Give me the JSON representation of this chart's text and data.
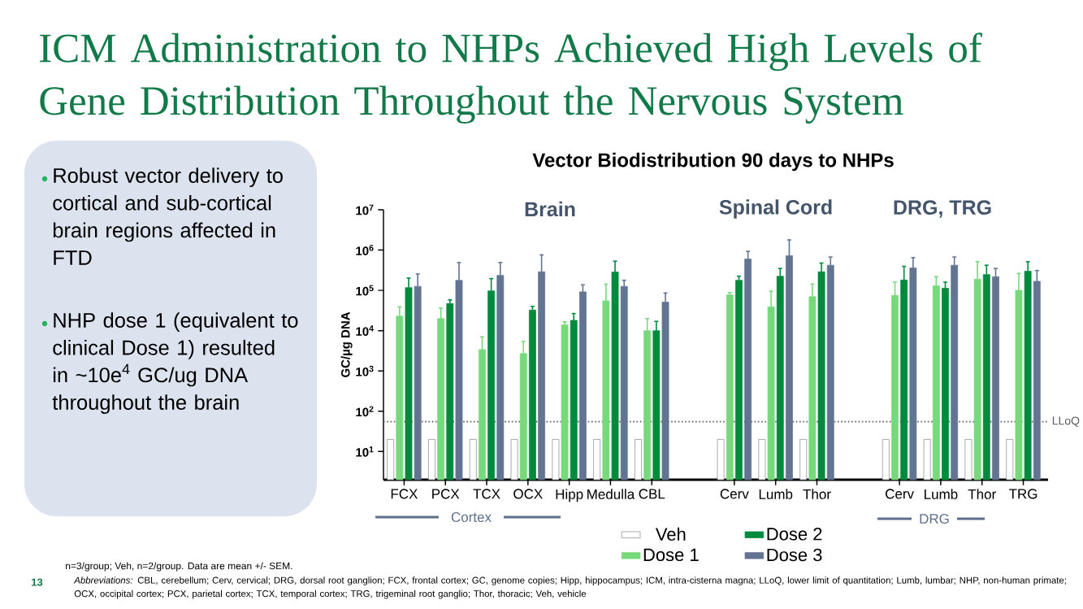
{
  "chart_data": {
    "type": "bar",
    "title": "ICM Administration to NHPs Achieved High Levels of Gene Distribution Throughout the Nervous System",
    "subtitle": "Vector Biodistribution 90 days to NHPs",
    "ylabel": "GC/µg DNA",
    "categories": [
      "FCX",
      "PCX",
      "TCX",
      "OCX",
      "Hipp",
      "Medulla",
      "CBL",
      null,
      "Cerv",
      "Lumb",
      "Thor",
      null,
      "Cerv",
      "Lumb",
      "Thor",
      "TRG"
    ],
    "series": [
      {
        "name": "Veh",
        "color": "#ffffff",
        "values": [
          20,
          20,
          20,
          20,
          20,
          20,
          20,
          null,
          20,
          20,
          20,
          null,
          20,
          20,
          20,
          20
        ]
      },
      {
        "name": "Dose 1",
        "color": "#77d97b",
        "values": [
          23000,
          20000,
          3400,
          2700,
          14000,
          55000,
          10000,
          null,
          77000,
          39000,
          70000,
          null,
          75000,
          130000,
          190000,
          100000
        ],
        "errors": [
          [
            23000,
            39000
          ],
          [
            20000,
            36000
          ],
          [
            3400,
            7000
          ],
          [
            2700,
            5400
          ],
          [
            14000,
            16600
          ],
          [
            55000,
            143000
          ],
          [
            10000,
            20000
          ],
          null,
          [
            77000,
            88000
          ],
          [
            39000,
            95000
          ],
          [
            70000,
            143000
          ],
          null,
          [
            75000,
            160000
          ],
          [
            130000,
            218000
          ],
          [
            190000,
            515000
          ],
          [
            100000,
            263000
          ]
        ]
      },
      {
        "name": "Dose 2",
        "color": "#008a3e",
        "values": [
          117000,
          47000,
          97000,
          32500,
          18000,
          285000,
          10000,
          null,
          178000,
          225000,
          289000,
          null,
          181000,
          113000,
          247000,
          299000
        ],
        "errors": [
          [
            117000,
            202000
          ],
          [
            47000,
            58000
          ],
          [
            97000,
            196000
          ],
          [
            32500,
            40000
          ],
          [
            18000,
            26500
          ],
          [
            285000,
            530000
          ],
          [
            10000,
            17000
          ],
          null,
          [
            178000,
            225000
          ],
          [
            225000,
            350000
          ],
          [
            289000,
            476000
          ],
          null,
          [
            181000,
            395000
          ],
          [
            113000,
            160000
          ],
          [
            247000,
            421000
          ],
          [
            299000,
            515000
          ]
        ]
      },
      {
        "name": "Dose 3",
        "color": "#627491",
        "values": [
          126000,
          178000,
          236000,
          289000,
          92000,
          126000,
          51000,
          null,
          603000,
          726000,
          421000,
          null,
          360000,
          421000,
          218000,
          168000
        ],
        "errors": [
          [
            126000,
            255000
          ],
          [
            178000,
            490000
          ],
          [
            236000,
            490000
          ],
          [
            289000,
            760000
          ],
          [
            92000,
            137000
          ],
          [
            126000,
            178000
          ],
          [
            51000,
            86000
          ],
          null,
          [
            603000,
            930000
          ],
          [
            726000,
            1790000
          ],
          [
            421000,
            671000
          ],
          null,
          [
            360000,
            650000
          ],
          [
            421000,
            671000
          ],
          [
            218000,
            350000
          ],
          [
            168000,
            312000
          ]
        ]
      }
    ],
    "log": "y",
    "ylim": [
      2,
      10000000
    ],
    "yticks": [
      {
        "value": 10,
        "label": "10$^{1}$"
      },
      {
        "value": 100,
        "label": "10$^{2}$"
      },
      {
        "value": 1000,
        "label": "10$^{3}$"
      },
      {
        "value": 10000,
        "label": "10$^{4}$"
      },
      {
        "value": 100000,
        "label": "10$^{5}$"
      },
      {
        "value": 1000000,
        "label": "10$^{6}$"
      },
      {
        "value": 10000000,
        "label": "10$^{7}$"
      }
    ],
    "ref_lines": [
      {
        "axis": "y",
        "value": 55,
        "label": "LLoQ",
        "line_style": "dotted"
      }
    ],
    "legend": "bottom",
    "annotations": [
      "Brain",
      "Spinal Cord",
      "DRG, TRG",
      "Cortex",
      "DRG",
      "Robust vector delivery to cortical and sub-cortical brain regions affected in FTD",
      "NHP dose 1 (equivalent to clinical Dose 1) resulted in ~10e$^{4}$ GC/ug DNA throughout the brain",
      "n=3/group; Veh, n=2/group. Data are mean +/- SEM.",
      "*Abbreviations:* CBL, cerebellum; Cerv, cervical; DRG, dorsal root ganglion; FCX, frontal cortex; GC, genome copies; Hipp, hippocampus; ICM, intra-cisterna magna;  LLoQ, lower limit of quantitation; Lumb, lumbar; NHP, non-human primate; OCX, occipital cortex; PCX, parietal cortex;  TCX, temporal cortex;  TRG, trigeminal root ganglio; Thor, thoracic; Veh, vehicle",
      "13"
    ]
  }
}
